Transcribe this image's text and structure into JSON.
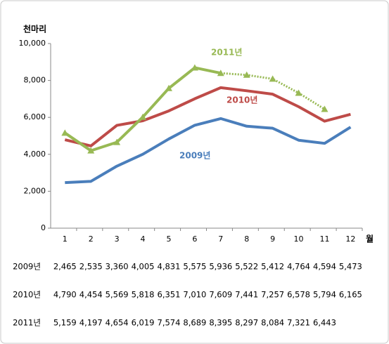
{
  "chart_data": {
    "type": "line",
    "y_label": "천마리",
    "x_unit": "월",
    "categories": [
      "1",
      "2",
      "3",
      "4",
      "5",
      "6",
      "7",
      "8",
      "9",
      "10",
      "11",
      "12"
    ],
    "ylim": [
      0,
      10000
    ],
    "yticks": [
      0,
      {
        "value": 2000,
        "label": "2,000"
      },
      {
        "value": 4000,
        "label": "4,000"
      },
      {
        "value": 6000,
        "label": "6,000"
      },
      {
        "value": 8000,
        "label": "8,000"
      },
      {
        "value": 10000,
        "label": "10,000"
      }
    ],
    "grid": false,
    "series": [
      {
        "name": "2009년",
        "color": "#4a7ebb",
        "marker": "none",
        "values": [
          2465,
          2535,
          3360,
          4005,
          4831,
          5575,
          5936,
          5522,
          5412,
          4764,
          4594,
          5473
        ],
        "value_labels": [
          "2,465",
          "2,535",
          "3,360",
          "4,005",
          "4,831",
          "5,575",
          "5,936",
          "5,522",
          "5,412",
          "4,764",
          "4,594",
          "5,473"
        ]
      },
      {
        "name": "2010년",
        "color": "#be4b48",
        "marker": "none",
        "values": [
          4790,
          4454,
          5569,
          5818,
          6351,
          7010,
          7609,
          7441,
          7257,
          6578,
          5794,
          6165
        ],
        "value_labels": [
          "4,790",
          "4,454",
          "5,569",
          "5,818",
          "6,351",
          "7,010",
          "7,609",
          "7,441",
          "7,257",
          "6,578",
          "5,794",
          "6,165"
        ]
      },
      {
        "name": "2011년",
        "color": "#98b954",
        "marker": "triangle",
        "dotted_after": "7",
        "values": [
          5159,
          4197,
          4654,
          6019,
          7574,
          8689,
          8395,
          8297,
          8084,
          7321,
          6443,
          null
        ],
        "value_labels": [
          "5,159",
          "4,197",
          "4,654",
          "6,019",
          "7,574",
          "8,689",
          "8,395",
          "8,297",
          "8,084",
          "7,321",
          "6,443",
          null
        ]
      }
    ]
  }
}
